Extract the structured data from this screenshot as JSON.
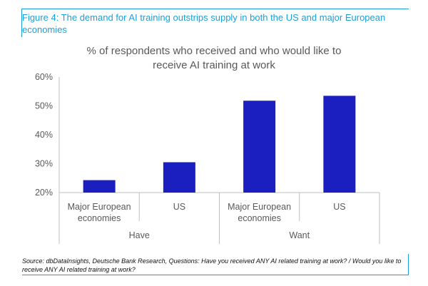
{
  "figure": {
    "title": "Figure 4: The demand for AI training outstrips supply in both the US and major European economies",
    "source": "Source: dbDataInsights, Deutsche Bank Research, Questions: Have you received ANY AI related training at work? / Would you like to receive ANY AI related training at work?"
  },
  "colors": {
    "accent": "#1e9fd8",
    "bar": "#1b1fbf",
    "axis": "#bfbfbf",
    "text": "#595959"
  },
  "chart_data": {
    "type": "bar",
    "title_lines": [
      "% of respondents who received and who would like to",
      "receive AI training at work"
    ],
    "groups": [
      "Have",
      "Want"
    ],
    "categories": [
      {
        "group": "Have",
        "label_lines": [
          "Major European",
          "economies"
        ]
      },
      {
        "group": "Have",
        "label_lines": [
          "US"
        ]
      },
      {
        "group": "Want",
        "label_lines": [
          "Major European",
          "economies"
        ]
      },
      {
        "group": "Want",
        "label_lines": [
          "US"
        ]
      }
    ],
    "values": [
      24.3,
      30.5,
      51.8,
      53.5
    ],
    "ylim": [
      20,
      60
    ],
    "yticks": [
      20,
      30,
      40,
      50,
      60
    ],
    "ytick_labels": [
      "20%",
      "30%",
      "40%",
      "50%",
      "60%"
    ],
    "xlabel": "",
    "ylabel": "",
    "grid": false
  }
}
